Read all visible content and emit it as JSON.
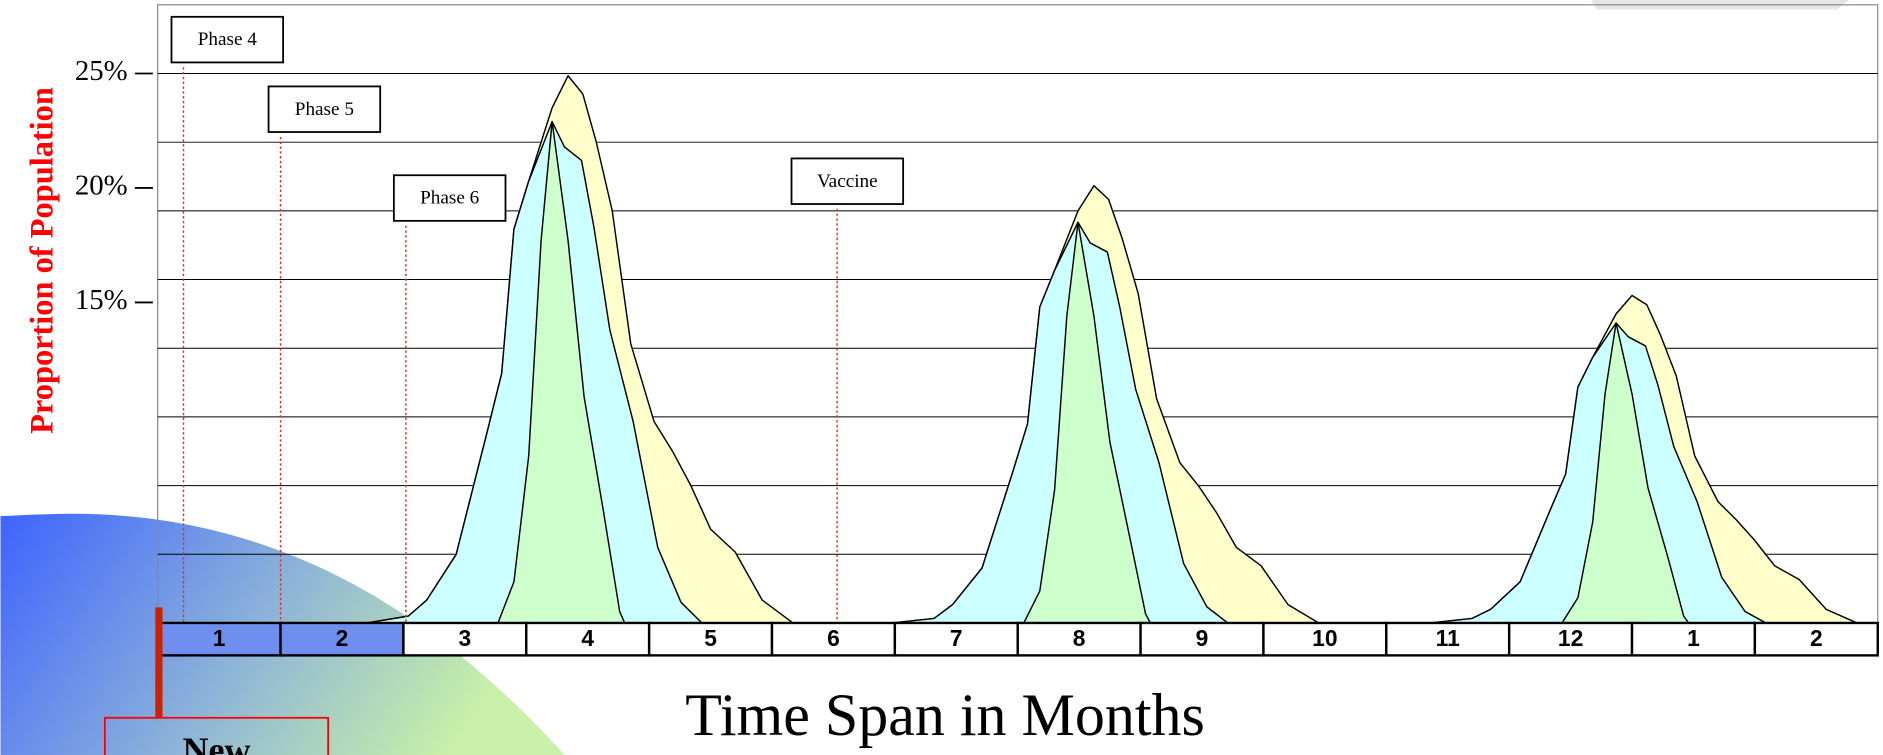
{
  "chart_data": {
    "type": "area",
    "ylabel": "Proportion of Population",
    "xlabel": "Time Span in Months",
    "categories": [
      "1",
      "2",
      "3",
      "4",
      "5",
      "6",
      "7",
      "8",
      "9",
      "10",
      "11",
      "12",
      "1",
      "2"
    ],
    "xlim": [
      0,
      14
    ],
    "ylim": [
      1,
      28
    ],
    "yticks": [
      {
        "value": 15,
        "label": "15%"
      },
      {
        "value": 20,
        "label": "20%"
      },
      {
        "value": 25,
        "label": "25%"
      }
    ],
    "ygrid": [
      4,
      7,
      10,
      13,
      16,
      19,
      22,
      25
    ],
    "grid": true,
    "series": [
      {
        "color": "#ffffcc",
        "x": [
          1.7,
          2.04,
          2.19,
          2.43,
          2.68,
          2.8,
          2.9,
          3.02,
          3.21,
          3.34,
          3.46,
          3.57,
          3.7,
          3.85,
          4.04,
          4.19,
          4.34,
          4.5,
          4.7,
          4.92,
          5.17,
          5.98,
          6.32,
          6.47,
          6.71,
          6.96,
          7.08,
          7.18,
          7.3,
          7.49,
          7.62,
          7.74,
          7.85,
          7.98,
          8.13,
          8.32,
          8.47,
          8.62,
          8.78,
          8.98,
          9.2,
          9.45,
          10.36,
          10.7,
          10.85,
          11.09,
          11.34,
          11.46,
          11.56,
          11.68,
          11.87,
          12.0,
          12.12,
          12.23,
          12.36,
          12.51,
          12.7,
          12.85,
          13.0,
          13.16,
          13.36,
          13.58,
          13.83
        ],
        "values": [
          1.0,
          1.3,
          2.0,
          4.0,
          9.3,
          11.9,
          18.2,
          20.3,
          23.5,
          24.9,
          24.1,
          22.0,
          19.0,
          13.2,
          9.8,
          8.5,
          7.0,
          5.1,
          4.1,
          2.0,
          1.0,
          1.0,
          1.2,
          1.8,
          3.4,
          7.6,
          9.7,
          14.8,
          16.4,
          19.0,
          20.1,
          19.5,
          17.8,
          15.4,
          10.8,
          8.0,
          7.0,
          5.8,
          4.3,
          3.5,
          1.8,
          1.0,
          1.0,
          1.2,
          1.6,
          2.8,
          6.0,
          7.5,
          11.3,
          12.6,
          14.5,
          15.3,
          14.9,
          13.6,
          11.8,
          8.3,
          6.3,
          5.5,
          4.6,
          3.5,
          2.9,
          1.6,
          1.0
        ]
      },
      {
        "color": "#ccffff",
        "x": [
          1.7,
          2.04,
          2.19,
          2.43,
          2.68,
          2.8,
          2.9,
          3.02,
          3.21,
          3.31,
          3.45,
          3.55,
          3.68,
          3.87,
          4.07,
          4.26,
          4.43,
          5.98,
          6.32,
          6.47,
          6.71,
          6.96,
          7.08,
          7.18,
          7.3,
          7.49,
          7.59,
          7.73,
          7.83,
          7.96,
          8.15,
          8.35,
          8.54,
          8.71,
          10.36,
          10.7,
          10.85,
          11.09,
          11.34,
          11.46,
          11.56,
          11.68,
          11.87,
          11.97,
          12.11,
          12.21,
          12.34,
          12.53,
          12.73,
          12.92,
          13.09
        ],
        "values": [
          1.0,
          1.3,
          2.0,
          4.0,
          9.3,
          11.9,
          18.2,
          20.3,
          22.9,
          21.8,
          21.2,
          18.3,
          13.8,
          9.8,
          4.3,
          1.9,
          1.0,
          1.0,
          1.2,
          1.8,
          3.4,
          7.6,
          9.7,
          14.8,
          16.4,
          18.5,
          17.6,
          17.2,
          14.8,
          11.2,
          8.0,
          3.6,
          1.7,
          1.0,
          1.0,
          1.2,
          1.6,
          2.8,
          6.0,
          7.5,
          11.3,
          12.6,
          14.1,
          13.5,
          13.1,
          11.4,
          8.7,
          6.3,
          3.0,
          1.5,
          1.0
        ]
      },
      {
        "color": "#ccffcc",
        "x": [
          2.77,
          2.9,
          3.02,
          3.12,
          3.21,
          3.34,
          3.47,
          3.63,
          3.76,
          3.8,
          7.05,
          7.18,
          7.3,
          7.4,
          7.49,
          7.62,
          7.75,
          7.91,
          8.04,
          8.08,
          11.43,
          11.56,
          11.68,
          11.78,
          11.87,
          12.0,
          12.13,
          12.29,
          12.42,
          12.46
        ],
        "values": [
          1.0,
          2.8,
          8.3,
          17.7,
          22.9,
          17.7,
          10.9,
          5.8,
          1.5,
          1.0,
          1.0,
          2.4,
          6.8,
          14.4,
          18.5,
          14.4,
          8.9,
          4.8,
          1.4,
          1.0,
          1.0,
          2.1,
          5.4,
          11.0,
          14.1,
          11.0,
          6.9,
          3.9,
          1.3,
          1.0
        ]
      }
    ],
    "annotations": [
      {
        "text": "Phase 4",
        "x": 0.21
      },
      {
        "text": "Phase 5",
        "x": 1.0
      },
      {
        "text": "Phase 6",
        "x": 2.02
      },
      {
        "text": "Vaccine",
        "x": 5.53
      }
    ],
    "note_box": "New"
  }
}
